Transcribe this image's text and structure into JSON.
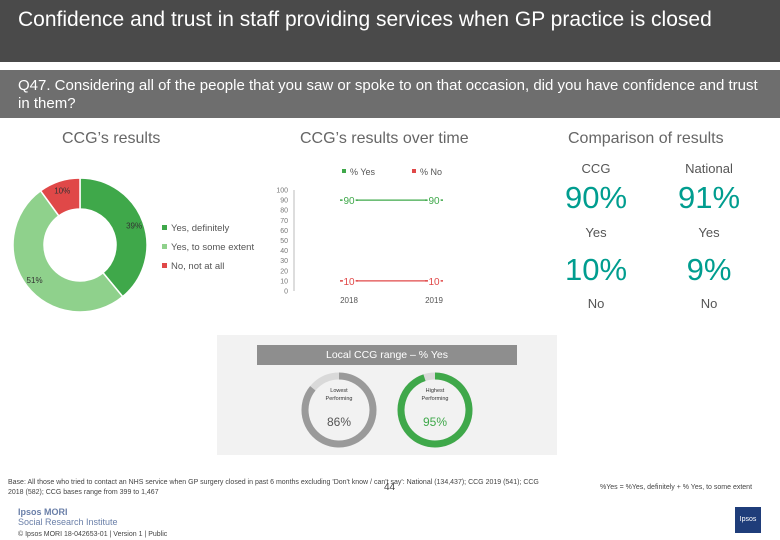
{
  "header": {
    "title": "Confidence and trust in staff providing services when GP practice is closed",
    "question": "Q47. Considering all of the people that you saw or spoke to on that occasion, did you have confidence and trust in them?"
  },
  "sections": {
    "ccg_results": "CCG’s results",
    "over_time": "CCG’s results over time",
    "comparison": "Comparison of results"
  },
  "colors": {
    "dark_green": "#3fa84a",
    "light_green": "#8fd18c",
    "red": "#e04848",
    "teal": "#009d8f"
  },
  "chart_data": [
    {
      "type": "pie",
      "labels": [
        "Yes, definitely",
        "Yes, to some extent",
        "No, not at all"
      ],
      "values": [
        39,
        51,
        10
      ],
      "value_labels": [
        "39%",
        "51%",
        "10%"
      ],
      "colors": [
        "#3fa84a",
        "#8fd18c",
        "#e04848"
      ],
      "legend": [
        "Yes, definitely",
        "Yes, to some extent",
        "No, not at all"
      ]
    },
    {
      "type": "line",
      "x": [
        "2018",
        "2019"
      ],
      "series": [
        {
          "name": "% Yes",
          "values": [
            90,
            90
          ],
          "labels": [
            "90",
            "90"
          ],
          "color": "#3fa84a"
        },
        {
          "name": "% No",
          "values": [
            10,
            10
          ],
          "labels": [
            "10",
            "10"
          ],
          "color": "#e04848"
        }
      ],
      "ylim": [
        0,
        100
      ],
      "yticks": [
        "0",
        "10",
        "20",
        "30",
        "40",
        "50",
        "60",
        "70",
        "80",
        "90",
        "100"
      ]
    }
  ],
  "comparison": {
    "ccg_label": "CCG",
    "national_label": "National",
    "ccg_yes": "90%",
    "national_yes": "91%",
    "yes_label": "Yes",
    "ccg_no": "10%",
    "national_no": "9%",
    "no_label": "No"
  },
  "range": {
    "title": "Local CCG range – % Yes",
    "lowest_label": "Lowest Performing",
    "lowest_value": "86%",
    "lowest_fraction": 0.86,
    "highest_label": "Highest Performing",
    "highest_value": "95%",
    "highest_fraction": 0.95
  },
  "footer": {
    "base": "Base: All those who tried to contact an NHS service when GP surgery closed in past 6 months excluding 'Don't know / can't say': National (134,437); CCG 2019 (541); CCG 2018 (582); CCG bases range from 399 to 1,467",
    "definition": "%Yes = %Yes, definitely + % Yes, to some extent",
    "page": "44",
    "brand_line1": "Ipsos MORI",
    "brand_line2": "Social Research Institute",
    "copyright": "© Ipsos MORI     18-042653-01 | Version 1 | Public",
    "logo_text": "Ipsos"
  }
}
